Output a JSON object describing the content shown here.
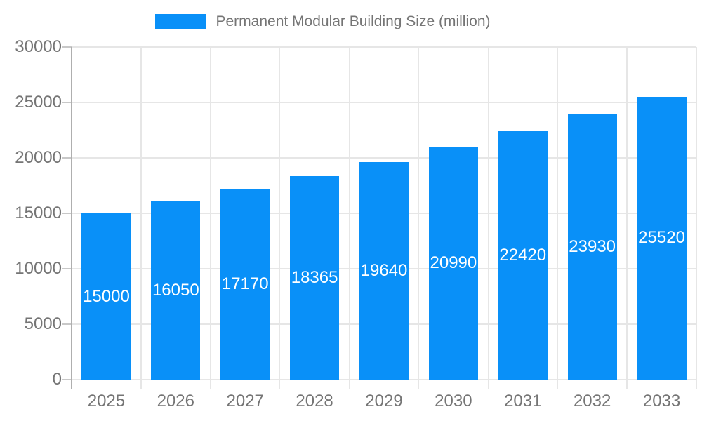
{
  "legend": {
    "label": "Permanent Modular Building Size (million)"
  },
  "colors": {
    "bar": "#0990F8",
    "grid": "#E6E6E6",
    "axis_line": "#AFAFAF",
    "tick": "#C8C8C8",
    "axis_text": "#757575",
    "value_text": "#FFFFFF"
  },
  "chart_data": {
    "type": "bar",
    "title": "Permanent Modular Building Size (million)",
    "categories": [
      "2025",
      "2026",
      "2027",
      "2028",
      "2029",
      "2030",
      "2031",
      "2032",
      "2033"
    ],
    "values": [
      15000,
      16050,
      17170,
      18365,
      19640,
      20990,
      22420,
      23930,
      25520
    ],
    "value_labels": [
      "15000",
      "16050",
      "17170",
      "18365",
      "19640",
      "20990",
      "22420",
      "23930",
      "25520"
    ],
    "xlabel": "",
    "ylabel": "",
    "ylim": [
      0,
      30000
    ],
    "yticks": [
      0,
      5000,
      10000,
      15000,
      20000,
      25000,
      30000
    ],
    "ytick_labels": [
      "0",
      "5000",
      "10000",
      "15000",
      "20000",
      "25000",
      "30000"
    ],
    "grid": true,
    "legend_position": "top",
    "bar_value_labels_inside": true
  }
}
